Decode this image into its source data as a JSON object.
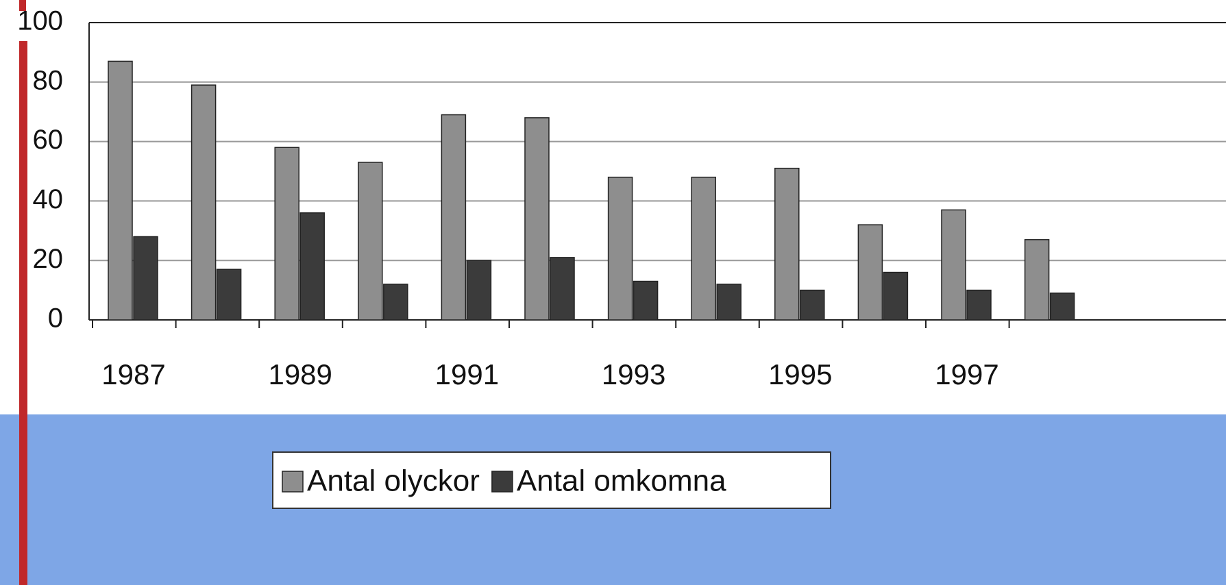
{
  "chart_data": {
    "type": "bar",
    "categories": [
      "1987",
      null,
      "1989",
      null,
      "1991",
      null,
      "1993",
      null,
      "1995",
      null,
      "1997",
      null
    ],
    "series": [
      {
        "name": "Antal olyckor",
        "color": "#8e8e8e",
        "values": [
          87,
          79,
          58,
          53,
          69,
          68,
          48,
          48,
          51,
          32,
          37,
          27
        ]
      },
      {
        "name": "Antal omkomna",
        "color": "#3b3b3b",
        "values": [
          28,
          17,
          36,
          12,
          20,
          21,
          13,
          12,
          10,
          16,
          10,
          9
        ]
      }
    ],
    "ylim": [
      0,
      100
    ],
    "yticks": [
      0,
      20,
      40,
      60,
      80,
      100
    ],
    "grid": true,
    "legend": "bottom"
  }
}
